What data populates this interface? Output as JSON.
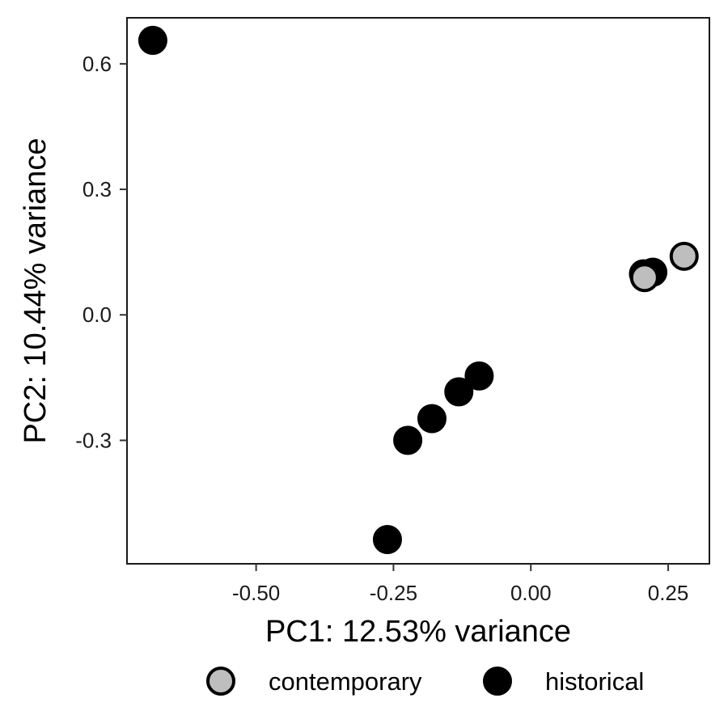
{
  "chart_data": {
    "type": "scatter",
    "xlabel": "PC1: 12.53% variance",
    "ylabel": "PC2: 10.44% variance",
    "xlim": [
      -0.735,
      0.325
    ],
    "ylim": [
      -0.595,
      0.71
    ],
    "x_ticks": [
      {
        "value": -0.5,
        "label": "-0.50"
      },
      {
        "value": -0.25,
        "label": "-0.25"
      },
      {
        "value": 0.0,
        "label": "0.00"
      },
      {
        "value": 0.25,
        "label": "0.25"
      }
    ],
    "y_ticks": [
      {
        "value": -0.3,
        "label": "-0.3"
      },
      {
        "value": 0.0,
        "label": "0.0"
      },
      {
        "value": 0.3,
        "label": "0.3"
      },
      {
        "value": 0.6,
        "label": "0.6"
      }
    ],
    "grid": false,
    "legend_position": "bottom",
    "series": [
      {
        "name": "historical",
        "fill": "#000000",
        "stroke": "#000000",
        "points": [
          {
            "x": -0.688,
            "y": 0.656
          },
          {
            "x": -0.261,
            "y": -0.537
          },
          {
            "x": -0.224,
            "y": -0.3
          },
          {
            "x": -0.18,
            "y": -0.248
          },
          {
            "x": -0.131,
            "y": -0.184
          },
          {
            "x": -0.094,
            "y": -0.146
          },
          {
            "x": 0.222,
            "y": 0.102
          },
          {
            "x": 0.205,
            "y": 0.098
          }
        ]
      },
      {
        "name": "contemporary",
        "fill": "#bebebe",
        "stroke": "#000000",
        "points": [
          {
            "x": 0.279,
            "y": 0.14
          },
          {
            "x": 0.207,
            "y": 0.089
          }
        ]
      }
    ],
    "legend_entries": [
      "contemporary",
      "historical"
    ]
  }
}
